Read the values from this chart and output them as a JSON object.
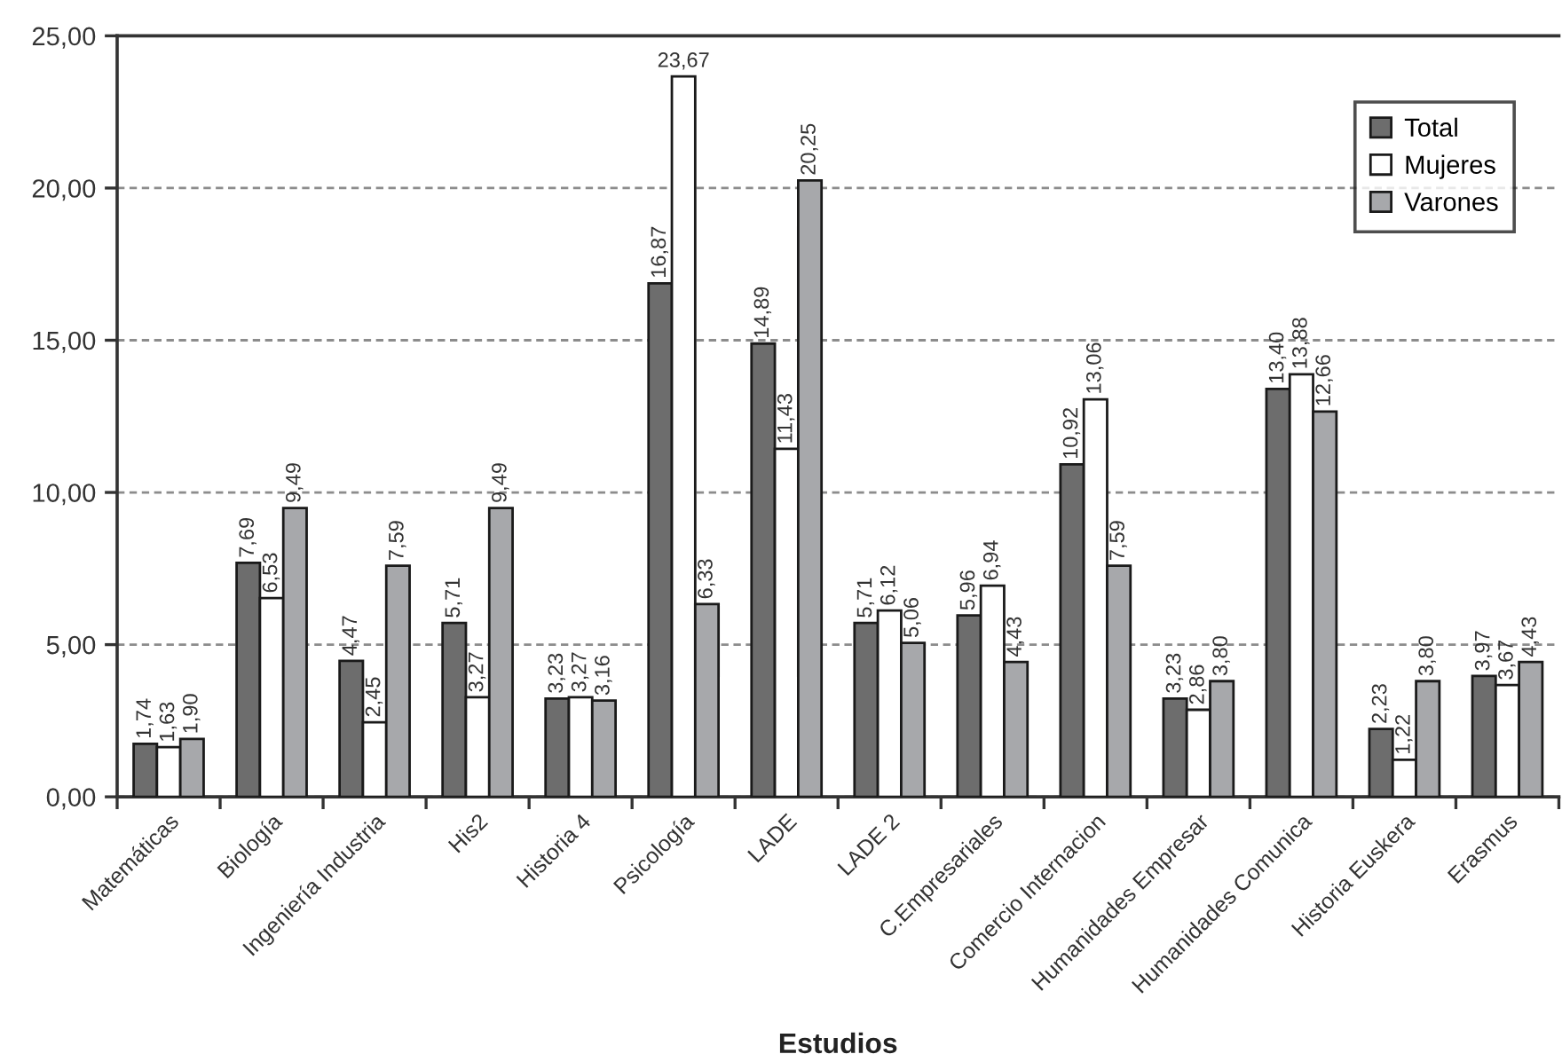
{
  "chart_data": {
    "type": "bar",
    "xlabel": "Estudios",
    "categories": [
      "Matemáticas",
      "Biología",
      "Ingeniería Industria",
      "His2",
      "Historia 4",
      "Psicología",
      "LADE",
      "LADE 2",
      "C.Empresariales",
      "Comercio Internacion",
      "Humanidades Empresar",
      "Humanidades Comunica",
      "Historia Euskera",
      "Erasmus"
    ],
    "series": [
      {
        "name": "Total",
        "color": "#6d6d6d",
        "values": [
          1.74,
          7.69,
          4.47,
          5.71,
          3.23,
          16.87,
          14.89,
          5.71,
          5.96,
          10.92,
          3.23,
          13.4,
          2.23,
          3.97
        ],
        "value_labels": [
          "1,74",
          "7,69",
          "4,47",
          "5,71",
          "3,23",
          "16,87",
          "14,89",
          "5,71",
          "5,96",
          "10,92",
          "3,23",
          "13,40",
          "2,23",
          "3,97"
        ]
      },
      {
        "name": "Mujeres",
        "color": "#ffffff",
        "values": [
          1.63,
          6.53,
          2.45,
          3.27,
          3.27,
          23.67,
          11.43,
          6.12,
          6.94,
          13.06,
          2.86,
          13.88,
          1.22,
          3.67
        ],
        "value_labels": [
          "1,63",
          "6,53",
          "2,45",
          "3,27",
          "3,27",
          "23,67",
          "11,43",
          "6,12",
          "6,94",
          "13,06",
          "2,86",
          "13,88",
          "1,22",
          "3,67"
        ]
      },
      {
        "name": "Varones",
        "color": "#a7a8ab",
        "values": [
          1.9,
          9.49,
          7.59,
          9.49,
          3.16,
          6.33,
          20.25,
          5.06,
          4.43,
          7.59,
          3.8,
          12.66,
          3.8,
          4.43
        ],
        "value_labels": [
          "1,90",
          "9,49",
          "7,59",
          "9,49",
          "3,16",
          "6,33",
          "20,25",
          "5,06",
          "4,43",
          "7,59",
          "3,80",
          "12,66",
          "3,80",
          "4,43"
        ]
      }
    ],
    "ylim": [
      0,
      25
    ],
    "yticks": [
      {
        "value": 0,
        "label": "0,00"
      },
      {
        "value": 5,
        "label": "5,00"
      },
      {
        "value": 10,
        "label": "10,00"
      },
      {
        "value": 15,
        "label": "15,00"
      },
      {
        "value": 20,
        "label": "20,00"
      },
      {
        "value": 25,
        "label": "25,00"
      }
    ],
    "grid": "y",
    "legend": "top right"
  }
}
